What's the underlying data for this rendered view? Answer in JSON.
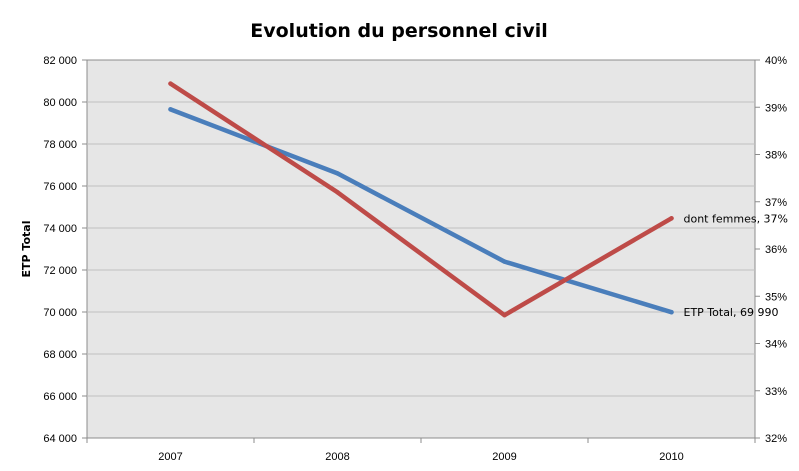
{
  "chart_data": {
    "type": "line",
    "title": "Evolution du personnel civil",
    "xlabel": "",
    "ylabel": "ETP Total",
    "y2label": "",
    "categories": [
      "2007",
      "2008",
      "2009",
      "2010"
    ],
    "ylim": [
      64000,
      82000
    ],
    "y_ticks": [
      64000,
      66000,
      68000,
      70000,
      72000,
      74000,
      76000,
      78000,
      80000,
      82000
    ],
    "y_tick_labels": [
      "64 000",
      "66 000",
      "68 000",
      "70 000",
      "72 000",
      "74 000",
      "76 000",
      "78 000",
      "80 000",
      "82 000"
    ],
    "y2lim": [
      0.32,
      0.4
    ],
    "y2_ticks": [
      0.32,
      0.33,
      0.34,
      0.35,
      0.36,
      0.37,
      0.38,
      0.39,
      0.4
    ],
    "y2_tick_labels": [
      "32%",
      "33%",
      "34%",
      "35%",
      "36%",
      "37%",
      "38%",
      "39%",
      "40%"
    ],
    "grid": true,
    "legend": "none",
    "series": [
      {
        "name": "ETP Total",
        "axis": "left",
        "color": "#4a7ebb",
        "values": [
          79650,
          76600,
          72400,
          69990
        ],
        "end_label": "ETP Total, 69 990"
      },
      {
        "name": "dont femmes",
        "axis": "right",
        "color": "#be4b48",
        "values": [
          0.395,
          0.372,
          0.346,
          0.3665
        ],
        "end_label": "dont femmes, 37%"
      }
    ],
    "plot_background": "#e6e6e6",
    "grid_color": "#c0c0c0"
  }
}
